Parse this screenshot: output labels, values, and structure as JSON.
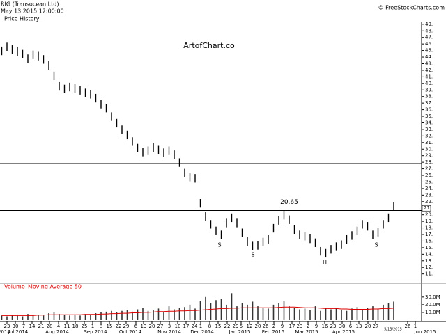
{
  "header": {
    "symbol": "RIG (Transocean Ltd)",
    "timestamp": "May 13 2015 12:00:00",
    "panel_title": "Price History",
    "credit": "© FreeStockCharts.com",
    "watermark": "ArtofChart.co"
  },
  "chart_data": [
    {
      "type": "range-bar",
      "title": "Price History",
      "color": "#000000",
      "x": [
        1,
        4,
        7,
        10,
        13,
        16,
        19,
        22,
        25,
        28,
        31,
        34,
        37,
        40,
        43,
        46,
        49,
        52,
        55,
        58,
        61,
        64,
        67,
        70,
        73,
        76,
        79,
        82,
        85,
        88,
        91,
        94,
        97,
        100,
        103,
        106,
        109,
        112,
        115,
        118,
        121,
        124,
        127,
        130,
        133,
        136,
        139,
        142,
        145,
        148,
        151,
        154,
        157,
        160,
        163,
        166,
        169,
        172,
        175,
        178,
        181,
        184,
        187,
        190,
        193,
        196,
        199,
        202,
        205,
        208,
        211,
        214,
        217,
        220,
        223,
        226
      ],
      "high": [
        45.6,
        46.2,
        45.8,
        45.5,
        45.1,
        44.4,
        45.0,
        44.8,
        44.3,
        43.4,
        41.8,
        40.2,
        39.8,
        40.1,
        39.9,
        39.6,
        39.2,
        39.0,
        38.4,
        37.5,
        36.9,
        35.6,
        34.6,
        33.6,
        32.8,
        31.8,
        30.8,
        30.2,
        30.4,
        30.9,
        30.5,
        30.1,
        30.4,
        29.8,
        28.6,
        27.0,
        26.4,
        26.2,
        22.4,
        20.4,
        19.2,
        18.2,
        17.6,
        19.4,
        20.2,
        19.4,
        17.9,
        16.6,
        15.9,
        16.0,
        16.5,
        16.9,
        18.6,
        19.8,
        20.6,
        19.9,
        18.4,
        17.6,
        17.4,
        17.0,
        16.4,
        15.1,
        14.8,
        15.4,
        15.8,
        16.1,
        16.9,
        17.5,
        18.2,
        19.2,
        18.9,
        17.6,
        18.0,
        19.2,
        20.2,
        21.9
      ],
      "low": [
        44.3,
        44.9,
        44.5,
        44.2,
        43.8,
        43.1,
        43.7,
        43.5,
        43.0,
        42.1,
        40.5,
        38.9,
        38.5,
        38.8,
        38.6,
        38.3,
        37.9,
        37.7,
        37.1,
        36.2,
        35.6,
        34.3,
        33.3,
        32.3,
        31.5,
        30.5,
        29.5,
        28.9,
        29.1,
        29.6,
        29.2,
        28.8,
        29.1,
        28.5,
        27.3,
        25.7,
        25.1,
        24.9,
        21.1,
        19.1,
        17.9,
        16.9,
        16.3,
        18.1,
        18.9,
        18.1,
        16.6,
        15.3,
        14.6,
        14.7,
        15.2,
        15.6,
        17.3,
        18.5,
        19.3,
        18.6,
        17.1,
        16.3,
        16.1,
        15.7,
        15.1,
        13.8,
        13.5,
        14.1,
        14.5,
        14.8,
        15.6,
        16.2,
        16.9,
        17.9,
        17.6,
        16.3,
        16.7,
        17.9,
        18.9,
        20.6
      ],
      "xlim": [
        0,
        242
      ],
      "ylim": [
        9.8,
        49.3
      ],
      "yticks": [
        {
          "value": 49,
          "label": "49."
        },
        {
          "value": 48,
          "label": "48."
        },
        {
          "value": 47,
          "label": "47."
        },
        {
          "value": 46,
          "label": "46."
        },
        {
          "value": 45,
          "label": "45."
        },
        {
          "value": 44,
          "label": "44."
        },
        {
          "value": 43,
          "label": "43."
        },
        {
          "value": 42,
          "label": "42."
        },
        {
          "value": 41,
          "label": "41."
        },
        {
          "value": 40,
          "label": "40."
        },
        {
          "value": 39,
          "label": "39."
        },
        {
          "value": 38,
          "label": "38."
        },
        {
          "value": 37,
          "label": "37."
        },
        {
          "value": 36,
          "label": "36."
        },
        {
          "value": 35,
          "label": "35."
        },
        {
          "value": 34,
          "label": "34."
        },
        {
          "value": 33,
          "label": "33."
        },
        {
          "value": 32,
          "label": "32."
        },
        {
          "value": 31,
          "label": "31."
        },
        {
          "value": 30,
          "label": "30."
        },
        {
          "value": 29,
          "label": "29."
        },
        {
          "value": 28,
          "label": "28."
        },
        {
          "value": 27,
          "label": "27."
        },
        {
          "value": 26,
          "label": "26."
        },
        {
          "value": 25,
          "label": "25."
        },
        {
          "value": 24,
          "label": "24."
        },
        {
          "value": 23,
          "label": "23."
        },
        {
          "value": 22,
          "label": "22."
        },
        {
          "value": 20,
          "label": "20."
        },
        {
          "value": 19,
          "label": "19."
        },
        {
          "value": 18,
          "label": "18."
        },
        {
          "value": 17,
          "label": "17."
        },
        {
          "value": 16,
          "label": "16."
        },
        {
          "value": 15,
          "label": "15."
        },
        {
          "value": 14,
          "label": "14."
        },
        {
          "value": 13,
          "label": "13."
        },
        {
          "value": 12,
          "label": "12."
        },
        {
          "value": 11,
          "label": "11."
        }
      ],
      "last_price": 21,
      "hlines": [
        {
          "value": 27.8
        },
        {
          "value": 20.65,
          "label": "20.65"
        }
      ],
      "annotations": [
        "S",
        "S",
        "H",
        "S"
      ]
    },
    {
      "type": "volume",
      "title": "Volume",
      "ylim": [
        0,
        38
      ],
      "series": [
        {
          "name": "Volume",
          "color": "#333333",
          "values": [
            6,
            5,
            7,
            6,
            5,
            8,
            6,
            7,
            6,
            9,
            10,
            8,
            7,
            6,
            7,
            6,
            8,
            7,
            9,
            10,
            11,
            12,
            10,
            12,
            13,
            11,
            14,
            16,
            12,
            13,
            15,
            11,
            18,
            14,
            16,
            17,
            20,
            15,
            25,
            30,
            22,
            26,
            28,
            20,
            35,
            18,
            22,
            20,
            24,
            18,
            16,
            15,
            20,
            22,
            25,
            18,
            16,
            14,
            15,
            13,
            18,
            12,
            16,
            14,
            15,
            13,
            12,
            15,
            17,
            14,
            16,
            18,
            15,
            20,
            22,
            24
          ]
        },
        {
          "name": "Moving Average 50",
          "color": "#dd0000",
          "values": [
            6,
            6,
            6,
            6,
            6,
            6,
            6,
            6.5,
            6.5,
            7,
            7,
            7,
            7,
            7,
            7,
            7,
            7.5,
            7.5,
            7.5,
            8,
            8,
            8.5,
            8.5,
            9,
            9,
            9.5,
            9.5,
            10,
            10,
            10.5,
            11,
            11,
            11.5,
            11.5,
            12,
            12,
            12.5,
            12.5,
            13,
            13.5,
            14,
            14.5,
            15,
            15,
            15.5,
            15.5,
            16,
            16,
            16,
            16,
            16,
            16,
            16,
            16.5,
            17,
            17,
            17,
            16.5,
            16,
            16,
            16,
            15.5,
            15,
            15,
            15,
            14.5,
            14.5,
            14,
            14,
            14,
            14,
            14.5,
            14.5,
            15,
            15,
            15.5
          ]
        }
      ],
      "yticks": [
        {
          "value": 30,
          "label": "30.0M"
        },
        {
          "value": 20,
          "label": "20.0M"
        },
        {
          "value": 10,
          "label": "10.0M"
        }
      ],
      "xticks": [
        {
          "value": 4,
          "label": "23"
        },
        {
          "value": 8.8,
          "label": "30"
        },
        {
          "value": 13.6,
          "label": "7"
        },
        {
          "value": 18.4,
          "label": "14"
        },
        {
          "value": 23.6,
          "label": "21"
        },
        {
          "value": 28.4,
          "label": "28"
        },
        {
          "value": 33.6,
          "label": "4"
        },
        {
          "value": 38.4,
          "label": "11"
        },
        {
          "value": 43.2,
          "label": "18"
        },
        {
          "value": 48.4,
          "label": "25"
        },
        {
          "value": 53.2,
          "label": "1"
        },
        {
          "value": 58,
          "label": "8"
        },
        {
          "value": 62.8,
          "label": "15"
        },
        {
          "value": 68,
          "label": "22"
        },
        {
          "value": 72.4,
          "label": "29"
        },
        {
          "value": 78,
          "label": "6"
        },
        {
          "value": 82.4,
          "label": "13"
        },
        {
          "value": 87.2,
          "label": "20"
        },
        {
          "value": 92,
          "label": "27"
        },
        {
          "value": 97.2,
          "label": "3"
        },
        {
          "value": 102,
          "label": "10"
        },
        {
          "value": 106.8,
          "label": "17"
        },
        {
          "value": 111.6,
          "label": "24"
        },
        {
          "value": 115.2,
          "label": "1"
        },
        {
          "value": 120.4,
          "label": "8"
        },
        {
          "value": 125.2,
          "label": "15"
        },
        {
          "value": 130.4,
          "label": "22"
        },
        {
          "value": 135.2,
          "label": "29"
        },
        {
          "value": 138.4,
          "label": "5"
        },
        {
          "value": 143.2,
          "label": "12"
        },
        {
          "value": 148,
          "label": "20"
        },
        {
          "value": 152.4,
          "label": "26"
        },
        {
          "value": 157.2,
          "label": "2"
        },
        {
          "value": 162,
          "label": "9"
        },
        {
          "value": 167.6,
          "label": "17"
        },
        {
          "value": 172,
          "label": "23"
        },
        {
          "value": 176.8,
          "label": "2"
        },
        {
          "value": 181.6,
          "label": "9"
        },
        {
          "value": 186.4,
          "label": "16"
        },
        {
          "value": 191.2,
          "label": "23"
        },
        {
          "value": 196.4,
          "label": "30"
        },
        {
          "value": 201.2,
          "label": "6"
        },
        {
          "value": 206,
          "label": "13"
        },
        {
          "value": 211.2,
          "label": "20"
        },
        {
          "value": 215.6,
          "label": "27"
        },
        {
          "value": 234,
          "label": "26"
        },
        {
          "value": 238.4,
          "label": "1"
        }
      ],
      "month_ticks": [
        {
          "value": 2.4,
          "label": "2014"
        },
        {
          "value": 10.4,
          "label": "Jul 2014"
        },
        {
          "value": 32.8,
          "label": "Aug 2014"
        },
        {
          "value": 54.8,
          "label": "Sep 2014"
        },
        {
          "value": 74.8,
          "label": "Oct 2014"
        },
        {
          "value": 97.2,
          "label": "Nov 2014"
        },
        {
          "value": 116,
          "label": "Dec 2014"
        },
        {
          "value": 137.6,
          "label": "Jan 2015"
        },
        {
          "value": 156.8,
          "label": "Feb 2015"
        },
        {
          "value": 176,
          "label": "Mar 2015"
        },
        {
          "value": 197.2,
          "label": "Apr 2015"
        },
        {
          "value": 244,
          "label": "Jun 2015"
        }
      ],
      "current_date": "5/13/2015"
    }
  ]
}
